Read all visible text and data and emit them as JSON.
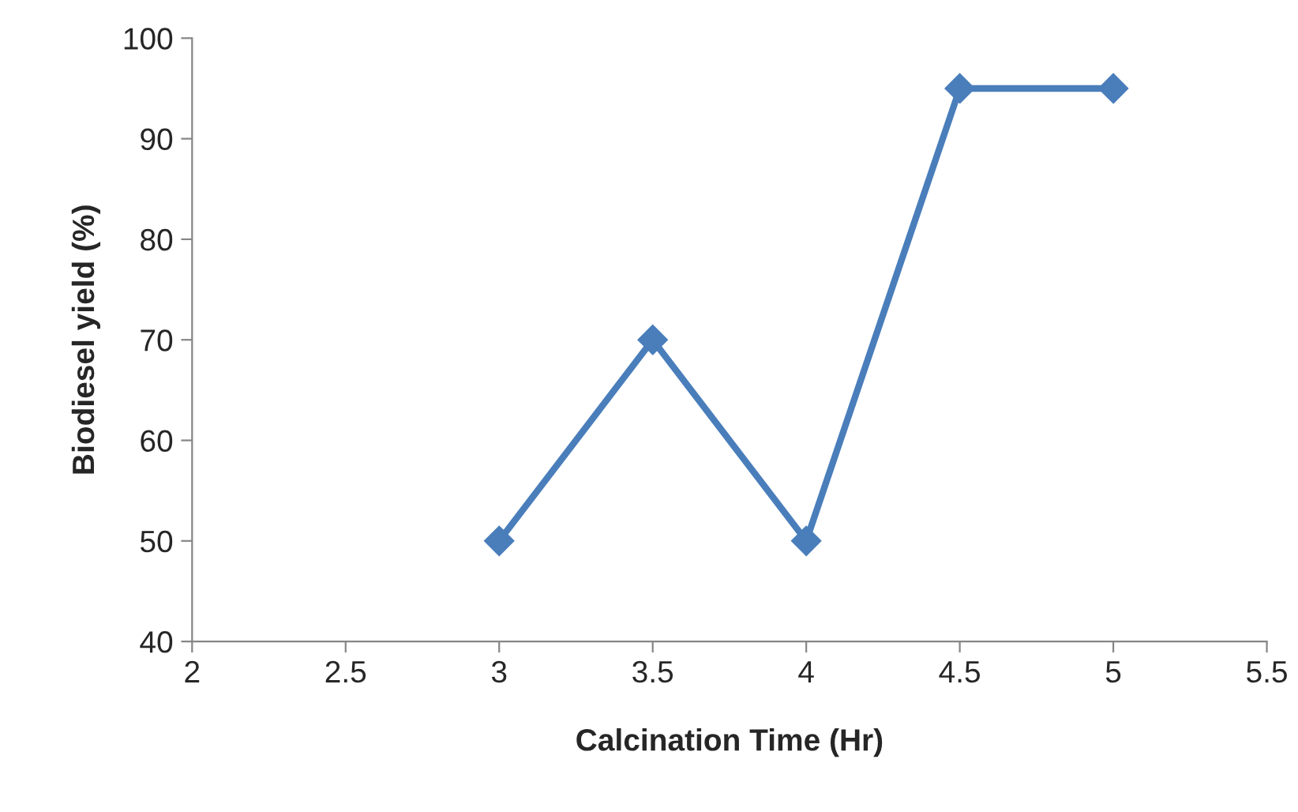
{
  "chart_data": {
    "type": "line",
    "xlabel": "Calcination Time (Hr)",
    "ylabel": "Biodiesel yield (%)",
    "x": [
      3,
      3.5,
      4,
      4.5,
      5
    ],
    "series": [
      {
        "color": "#4a7ebb",
        "values": [
          50,
          70,
          50,
          95,
          95
        ]
      }
    ],
    "xlim": [
      2,
      5.5
    ],
    "xticks": [
      2,
      2.5,
      3,
      3.5,
      4,
      4.5,
      5,
      5.5
    ],
    "ylim": [
      40,
      100
    ],
    "yticks": [
      40,
      50,
      60,
      70,
      80,
      90,
      100
    ],
    "marker": "diamond",
    "line_style": "solid",
    "grid": false,
    "legend": false
  }
}
